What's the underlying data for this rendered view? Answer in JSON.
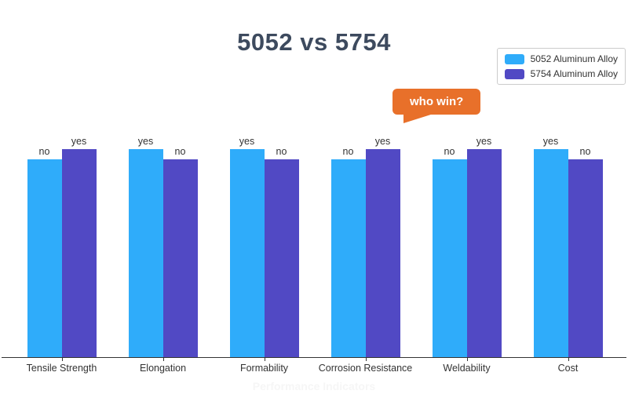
{
  "title": {
    "text": "5052 vs 5754"
  },
  "legend": {
    "items": [
      {
        "label": "5052 Aluminum Alloy",
        "color": "#2facfa"
      },
      {
        "label": "5754 Aluminum Alloy",
        "color": "#5149c4"
      }
    ]
  },
  "callout": {
    "text": "who win?",
    "color": "#e8702a"
  },
  "chart_data": {
    "type": "bar",
    "title": "5052 vs 5754",
    "xlabel": "Performance Indicators",
    "ylabel": "",
    "categories": [
      "Tensile Strength",
      "Elongation",
      "Formability",
      "Corrosion Resistance",
      "Weldability",
      "Cost"
    ],
    "series": [
      {
        "name": "5052 Aluminum Alloy",
        "color": "#2facfa",
        "labels": [
          "no",
          "yes",
          "yes",
          "no",
          "no",
          "yes"
        ],
        "values": [
          1.0,
          1.05,
          1.05,
          1.0,
          1.0,
          1.05
        ]
      },
      {
        "name": "5754 Aluminum Alloy",
        "color": "#5149c4",
        "labels": [
          "yes",
          "no",
          "no",
          "yes",
          "yes",
          "no"
        ],
        "values": [
          1.05,
          1.0,
          1.0,
          1.05,
          1.05,
          1.0
        ]
      }
    ],
    "value_label_meaning": "yes = alloy wins that indicator, no = it does not",
    "ylim": [
      0,
      1.13
    ],
    "grid": false,
    "legend_position": "top-right",
    "annotation": {
      "text": "who win?",
      "style": "orange speech bubble above Corrosion Resistance / Weldability"
    }
  }
}
